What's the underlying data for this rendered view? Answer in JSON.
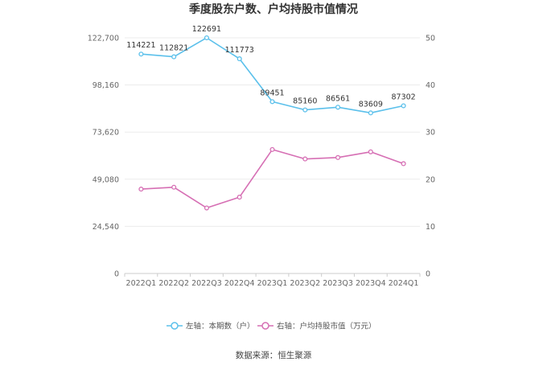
{
  "chart_data": {
    "type": "line",
    "title": "季度股东户数、户均持股市值情况",
    "categories": [
      "2022Q1",
      "2022Q2",
      "2022Q3",
      "2022Q4",
      "2023Q1",
      "2023Q2",
      "2023Q3",
      "2023Q4",
      "2024Q1"
    ],
    "left_axis": {
      "ticks": [
        "0",
        "24,540",
        "49,080",
        "73,620",
        "98,160",
        "122,700"
      ],
      "ylim": [
        0,
        122700
      ]
    },
    "right_axis": {
      "ticks": [
        "0",
        "10",
        "20",
        "30",
        "40",
        "50"
      ],
      "ylim": [
        0,
        50
      ]
    },
    "series": [
      {
        "name": "左轴：本期数（户）",
        "axis": "left",
        "color": "#5bc0eb",
        "values": [
          114221,
          112821,
          122691,
          111773,
          89451,
          85160,
          86561,
          83609,
          87302
        ],
        "labels": [
          "114221",
          "112821",
          "122691",
          "111773",
          "89451",
          "85160",
          "86561",
          "83609",
          "87302"
        ]
      },
      {
        "name": "右轴：户均持股市值（万元）",
        "axis": "right",
        "color": "#d66fb4",
        "values": [
          17.9,
          18.3,
          13.9,
          16.2,
          26.3,
          24.3,
          24.6,
          25.8,
          23.3
        ]
      }
    ],
    "grid": true,
    "legend": "bottom-center"
  },
  "footer": {
    "source": "数据来源：恒生聚源"
  }
}
